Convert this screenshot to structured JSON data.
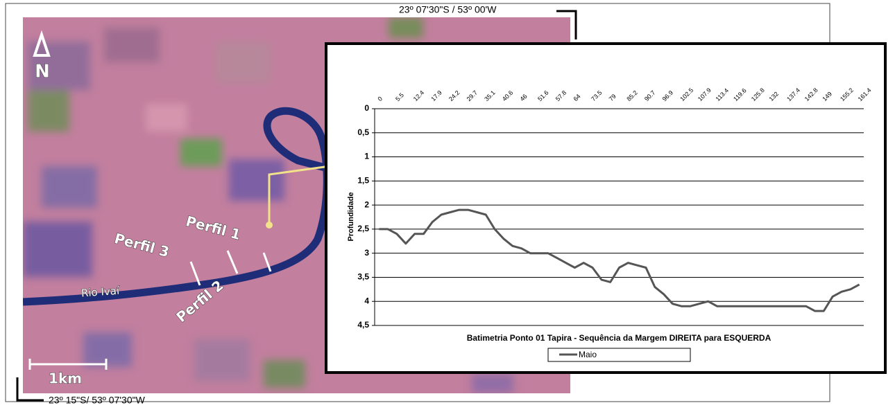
{
  "map": {
    "north": "N",
    "scale": "1km",
    "coord_top": "23º 07'30\"S / 53º 00'W",
    "coord_bottom": "23º 15\"S/ 53º 07'30\"W",
    "labels": [
      "Perfil 1",
      "Perfil 2",
      "Perfil 3",
      "Rio Ivaí"
    ]
  },
  "chart_data": {
    "type": "line",
    "title": "Batimetria Ponto 01 Tapira - Sequência da Margem DIREITA para ESQUERDA",
    "y_label": "Profundidade",
    "categories": [
      "0",
      null,
      "5.5",
      null,
      "12.4",
      null,
      "17.9",
      null,
      "24.2",
      null,
      "29.7",
      null,
      "35.1",
      null,
      "40.6",
      null,
      "46",
      null,
      "51.6",
      null,
      "57.8",
      null,
      "64",
      null,
      "73.5",
      null,
      "79",
      null,
      "85.2",
      null,
      "90.7",
      null,
      "96.9",
      null,
      "102.5",
      null,
      "107.9",
      null,
      "113.4",
      null,
      "119.6",
      null,
      "125.8",
      null,
      "132",
      null,
      "137.4",
      null,
      "142.8",
      null,
      "149",
      null,
      "155.2",
      null,
      "161.4"
    ],
    "series": [
      {
        "name": "Maio",
        "color": "#555555",
        "values": [
          2.5,
          2.5,
          2.6,
          2.8,
          2.6,
          2.6,
          2.35,
          2.2,
          2.15,
          2.1,
          2.1,
          2.15,
          2.2,
          2.5,
          2.7,
          2.85,
          2.9,
          3.0,
          3.0,
          3.0,
          3.1,
          3.2,
          3.3,
          3.2,
          3.3,
          3.55,
          3.6,
          3.3,
          3.2,
          3.25,
          3.3,
          3.7,
          3.85,
          4.05,
          4.1,
          4.1,
          4.05,
          4.0,
          4.1,
          4.1,
          4.1,
          4.1,
          4.1,
          4.1,
          4.1,
          4.1,
          4.1,
          4.1,
          4.1,
          4.2,
          4.2,
          3.9,
          3.8,
          3.75,
          3.65
        ]
      }
    ],
    "ylim": [
      0,
      4.5
    ],
    "y_inverted": true,
    "yticks": [
      0,
      {
        "value": 0.5,
        "label": "0,5"
      },
      1,
      {
        "value": 1.5,
        "label": "1,5"
      },
      2,
      {
        "value": 2.5,
        "label": "2,5"
      },
      3,
      {
        "value": 3.5,
        "label": "3,5"
      },
      4,
      {
        "value": 4.5,
        "label": "4,5"
      }
    ],
    "grid": true,
    "x_axis_position": "top",
    "legend": "bottom"
  }
}
